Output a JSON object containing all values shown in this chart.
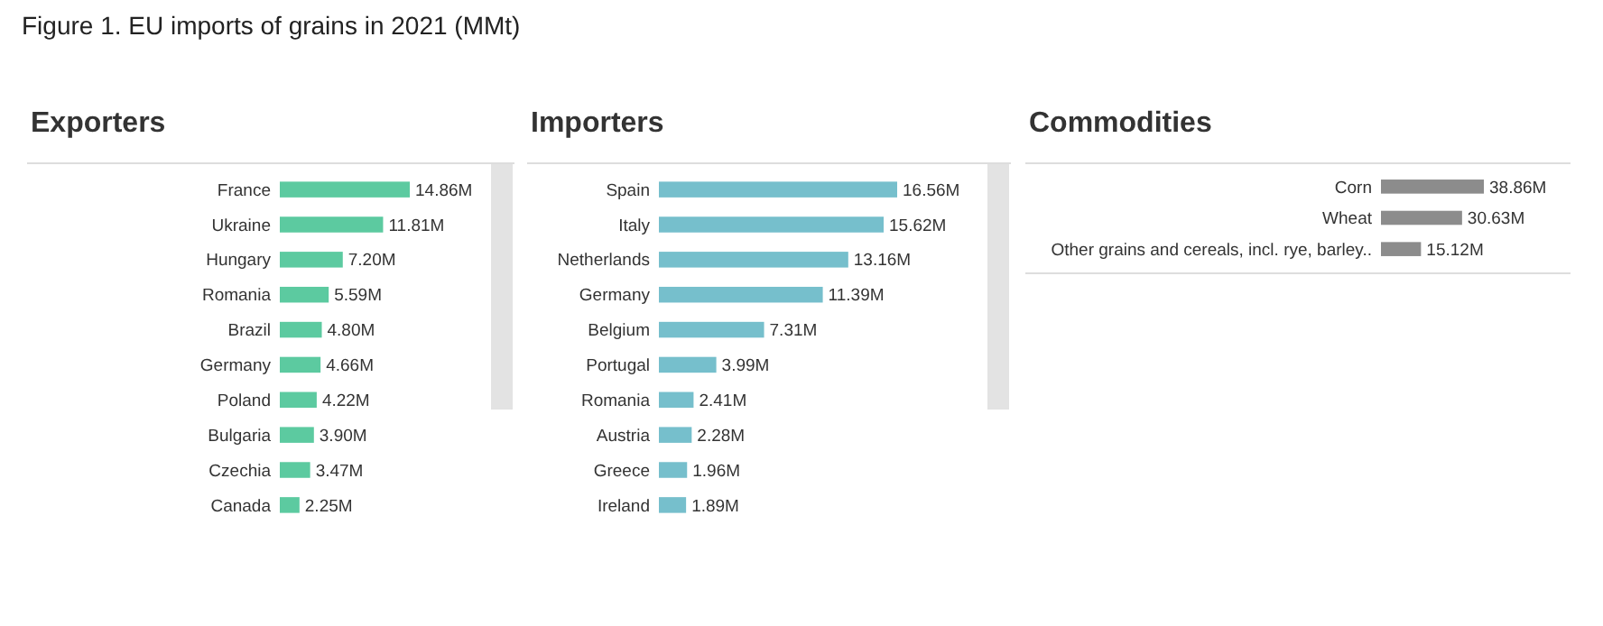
{
  "chart_data": [
    {
      "type": "bar",
      "orientation": "horizontal",
      "title": "Exporters",
      "annotations": [
        "Figure 1. EU imports of grains in 2021 (MMt)"
      ],
      "categories": [
        "France",
        "Ukraine",
        "Hungary",
        "Romania",
        "Brazil",
        "Germany",
        "Poland",
        "Bulgaria",
        "Czechia",
        "Canada"
      ],
      "color": "#5ccaa0",
      "values": [
        14.86,
        11.81,
        7.2,
        5.59,
        4.8,
        4.66,
        4.22,
        3.9,
        3.47,
        2.25
      ],
      "value_labels": [
        "14.86M",
        "11.81M",
        "7.20M",
        "5.59M",
        "4.80M",
        "4.66M",
        "4.22M",
        "3.90M",
        "3.47M",
        "2.25M"
      ]
    },
    {
      "type": "bar",
      "orientation": "horizontal",
      "title": "Importers",
      "categories": [
        "Spain",
        "Italy",
        "Netherlands",
        "Germany",
        "Belgium",
        "Portugal",
        "Romania",
        "Austria",
        "Greece",
        "Ireland"
      ],
      "color": "#76bfcc",
      "values": [
        16.56,
        15.62,
        13.16,
        11.39,
        7.31,
        3.99,
        2.41,
        2.28,
        1.96,
        1.89
      ],
      "value_labels": [
        "16.56M",
        "15.62M",
        "13.16M",
        "11.39M",
        "7.31M",
        "3.99M",
        "2.41M",
        "2.28M",
        "1.96M",
        "1.89M"
      ]
    },
    {
      "type": "bar",
      "orientation": "horizontal",
      "title": "Commodities",
      "categories": [
        "Corn",
        "Wheat",
        "Other grains and cereals, incl. rye, barley.."
      ],
      "color": "#8c8c8c",
      "values": [
        38.86,
        30.63,
        15.12
      ],
      "value_labels": [
        "38.86M",
        "30.63M",
        "15.12M"
      ]
    }
  ]
}
